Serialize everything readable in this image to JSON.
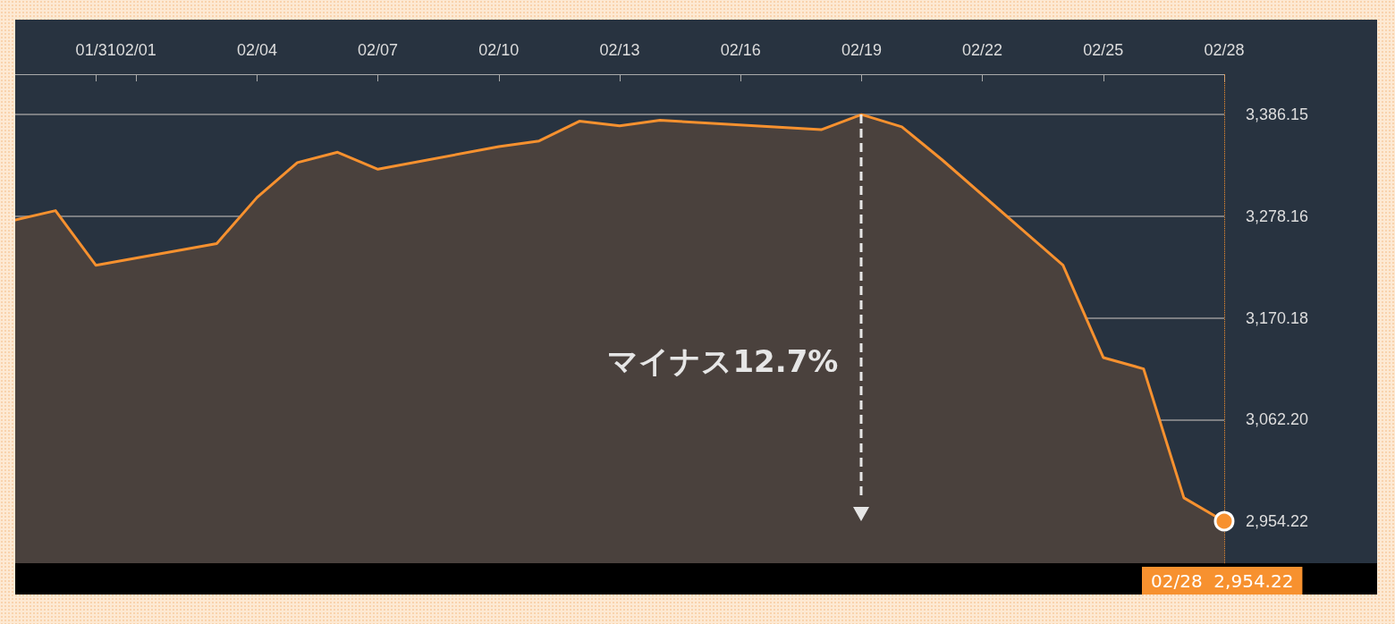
{
  "chart_data": {
    "type": "area",
    "x": [
      "--01-29",
      "--01-30",
      "--01-31",
      "--02-03",
      "--02-04",
      "--02-05",
      "--02-06",
      "--02-07",
      "--02-10",
      "--02-11",
      "--02-12",
      "--02-13",
      "--02-14",
      "--02-18",
      "--02-19",
      "--02-20",
      "--02-21",
      "--02-24",
      "--02-25",
      "--02-26",
      "--02-27",
      "--02-28"
    ],
    "series": [
      {
        "color": "#f7912f",
        "values": [
          3274,
          3284,
          3226,
          3249,
          3298,
          3335,
          3346,
          3328,
          3352,
          3358,
          3379,
          3374,
          3380,
          3370,
          3386,
          3373,
          3338,
          3226,
          3128,
          3116,
          2979,
          2954
        ]
      }
    ],
    "xlim": [
      "--01-29",
      "--02-28"
    ],
    "xticks": [
      {
        "value": "--01-31",
        "label": "01/31"
      },
      {
        "value": "--02-01",
        "label": "02/01"
      },
      {
        "value": "--02-04",
        "label": "02/04"
      },
      {
        "value": "--02-07",
        "label": "02/07"
      },
      {
        "value": "--02-10",
        "label": "02/10"
      },
      {
        "value": "--02-13",
        "label": "02/13"
      },
      {
        "value": "--02-16",
        "label": "02/16"
      },
      {
        "value": "--02-19",
        "label": "02/19"
      },
      {
        "value": "--02-22",
        "label": "02/22"
      },
      {
        "value": "--02-25",
        "label": "02/25"
      },
      {
        "value": "--02-28",
        "label": "02/28"
      }
    ],
    "ylim": [
      2909.6,
      3428.9
    ],
    "yticks": [
      {
        "value": 2954.22,
        "label": "2,954.22"
      },
      {
        "value": 3062.2,
        "label": "3,062.20"
      },
      {
        "value": 3170.18,
        "label": "3,170.18"
      },
      {
        "value": 3278.16,
        "label": "3,278.16"
      },
      {
        "value": 3386.15,
        "label": "3,386.15"
      }
    ],
    "grid": "y",
    "marker": "none",
    "line_style": "solid",
    "ref_lines": [
      {
        "axis": "x",
        "value": "--02-28",
        "color": "#f7912f",
        "line_style": "dotted"
      }
    ],
    "annotations": [
      "マイナス12.7%",
      {
        "text": "02/28  2,954.22",
        "x": "--02-28",
        "y": 2954.22
      }
    ]
  }
}
